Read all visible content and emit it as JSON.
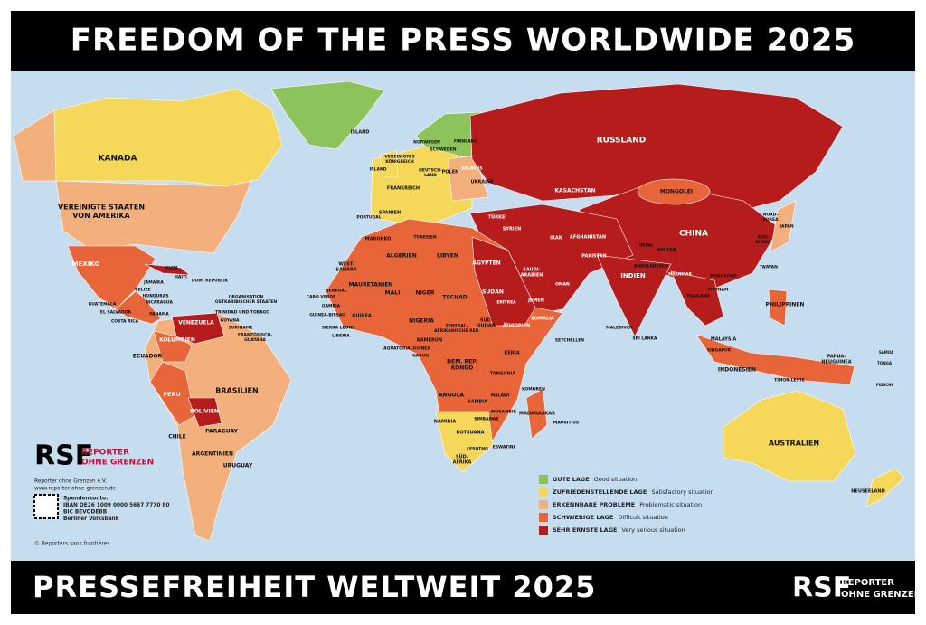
{
  "header": {
    "title": "FREEDOM OF THE PRESS WORLDWIDE 2025"
  },
  "footer": {
    "title": "PRESSEFREIHEIT WELTWEIT 2025",
    "logo": "RSF",
    "logo_line1": "REPORTER",
    "logo_line2": "OHNE GRENZEN"
  },
  "rsf_block": {
    "logo": "RSF",
    "logo_line1": "REPORTER",
    "logo_line2": "OHNE GRENZEN",
    "lines": [
      "Reporter ohne Grenzen e.V.",
      "www.reporter-ohne-grenzen.de",
      "Spendenkonto:",
      "IBAN DE26 1009 0000 5667 7770 80",
      "BIC BEVODEBB",
      "Berliner Volksbank"
    ],
    "copyright": "© Reporters sans frontières"
  },
  "legend": [
    {
      "label_de": "GUTE LAGE",
      "label_en": "Good situation",
      "color": "#8cc35a"
    },
    {
      "label_de": "ZUFRIEDENSTELLENDE LAGE",
      "label_en": "Satisfactory situation",
      "color": "#f5d75a"
    },
    {
      "label_de": "ERKENNBARE PROBLEME",
      "label_en": "Problematic situation",
      "color": "#f4b07c"
    },
    {
      "label_de": "SCHWIERIGE LAGE",
      "label_en": "Difficult situation",
      "color": "#e8653a"
    },
    {
      "label_de": "SEHR ERNSTE LAGE",
      "label_en": "Very serious situation",
      "color": "#b71c1c"
    }
  ],
  "map_labels": [
    [
      "KANADA"
    ],
    [
      "VEREINIGTE STAATEN",
      "VON AMERIKA"
    ],
    [
      "MEXIKO"
    ],
    [
      "KUBA"
    ],
    [
      "HAITI"
    ],
    [
      "JAMAIKA"
    ],
    [
      "DOM. REPUBLIK"
    ],
    [
      "BELIZE"
    ],
    [
      "HONDURAS"
    ],
    [
      "NICARAGUA"
    ],
    [
      "GUATEMALA"
    ],
    [
      "EL SALVADOR"
    ],
    [
      "COSTA RICA"
    ],
    [
      "PANAMA"
    ],
    [
      "ORGANISATION",
      "OSTKARIBISCHER STAATEN"
    ],
    [
      "TRINIDAD UND TOBAGO"
    ],
    [
      "VENEZUELA"
    ],
    [
      "GUYANA"
    ],
    [
      "SURINAME"
    ],
    [
      "FRANZÖSISCH-",
      "GUAYANA"
    ],
    [
      "KOLUMBIEN"
    ],
    [
      "ECUADOR"
    ],
    [
      "PERU"
    ],
    [
      "BRASILIEN"
    ],
    [
      "BOLIVIEN"
    ],
    [
      "PARAGUAY"
    ],
    [
      "CHILE"
    ],
    [
      "ARGENTINIEN"
    ],
    [
      "URUGUAY"
    ],
    [
      "ISLAND"
    ],
    [
      "NORWEGEN"
    ],
    [
      "SCHWEDEN"
    ],
    [
      "FINNLAND"
    ],
    [
      "VEREINIGTES",
      "KÖNIGREICH"
    ],
    [
      "IRLAND"
    ],
    [
      "DEUTSCH-",
      "LAND"
    ],
    [
      "POLEN"
    ],
    [
      "BELARUS"
    ],
    [
      "UKRAINE"
    ],
    [
      "FRANKREICH"
    ],
    [
      "SPANIEN"
    ],
    [
      "PORTUGAL"
    ],
    [
      "RUSSLAND"
    ],
    [
      "KASACHSTAN"
    ],
    [
      "MONGOLEI"
    ],
    [
      "CHINA"
    ],
    [
      "JAPAN"
    ],
    [
      "NORD-",
      "KOREA"
    ],
    [
      "SÜD-",
      "KOREA"
    ],
    [
      "TÜRKEI"
    ],
    [
      "SYRIEN"
    ],
    [
      "IRAN"
    ],
    [
      "AFGHANISTAN"
    ],
    [
      "PAKISTAN"
    ],
    [
      "INDIEN"
    ],
    [
      "NEPAL"
    ],
    [
      "BHUTAN"
    ],
    [
      "BANGLADESCH"
    ],
    [
      "MYANMAR"
    ],
    [
      "THAILAND"
    ],
    [
      "VIETNAM"
    ],
    [
      "TAIWAN"
    ],
    [
      "HONGKONG"
    ],
    [
      "PHILIPPINEN"
    ],
    [
      "MALAYSIA"
    ],
    [
      "SINGAPUR"
    ],
    [
      "INDONESIEN"
    ],
    [
      "PAPUA-",
      "NEUGUINEA"
    ],
    [
      "TIMOR-LESTE"
    ],
    [
      "AUSTRALIEN"
    ],
    [
      "NEUSEELAND"
    ],
    [
      "SAMOA"
    ],
    [
      "TONGA"
    ],
    [
      "FIDSCHI"
    ],
    [
      "MALEDIVEN"
    ],
    [
      "SRI LANKA"
    ],
    [
      "SAUDI-",
      "ARABIEN"
    ],
    [
      "JEMEN"
    ],
    [
      "OMAN"
    ],
    [
      "ÄGYPTEN"
    ],
    [
      "LIBYEN"
    ],
    [
      "ALGERIEN"
    ],
    [
      "MAROKKO"
    ],
    [
      "TUNESIEN"
    ],
    [
      "WEST-",
      "SAHARA"
    ],
    [
      "MAURETANIEN"
    ],
    [
      "MALI"
    ],
    [
      "NIGER"
    ],
    [
      "TSCHAD"
    ],
    [
      "SUDAN"
    ],
    [
      "ERITREA"
    ],
    [
      "SENEGAL"
    ],
    [
      "CABO VERDE"
    ],
    [
      "GAMBIA"
    ],
    [
      "GUINEA-BISSAU"
    ],
    [
      "GUINEA"
    ],
    [
      "SIERRA LEONE"
    ],
    [
      "LIBERIA"
    ],
    [
      "NIGERIA"
    ],
    [
      "KAMERUN"
    ],
    [
      "ZENTRAL-",
      "AFRIKANISCHE REP."
    ],
    [
      "SÜD-",
      "SUDAN"
    ],
    [
      "ÄTHIOPIEN"
    ],
    [
      "SOMALIA"
    ],
    [
      "KENIA"
    ],
    [
      "ÄQUATORIALGUINEA"
    ],
    [
      "GABUN"
    ],
    [
      "DEM. REP.",
      "KONGO"
    ],
    [
      "TANSANIA"
    ],
    [
      "ANGOLA"
    ],
    [
      "SAMBIA"
    ],
    [
      "MALAWI"
    ],
    [
      "MOSAMBIK"
    ],
    [
      "SIMBABWE"
    ],
    [
      "NAMIBIA"
    ],
    [
      "BOTSUANA"
    ],
    [
      "MADAGASKAR"
    ],
    [
      "SEYCHELLEN"
    ],
    [
      "KOMOREN"
    ],
    [
      "MAURITIUS"
    ],
    [
      "SÜD-",
      "AFRIKA"
    ],
    [
      "LESOTHO"
    ],
    [
      "ESWATINI"
    ]
  ]
}
